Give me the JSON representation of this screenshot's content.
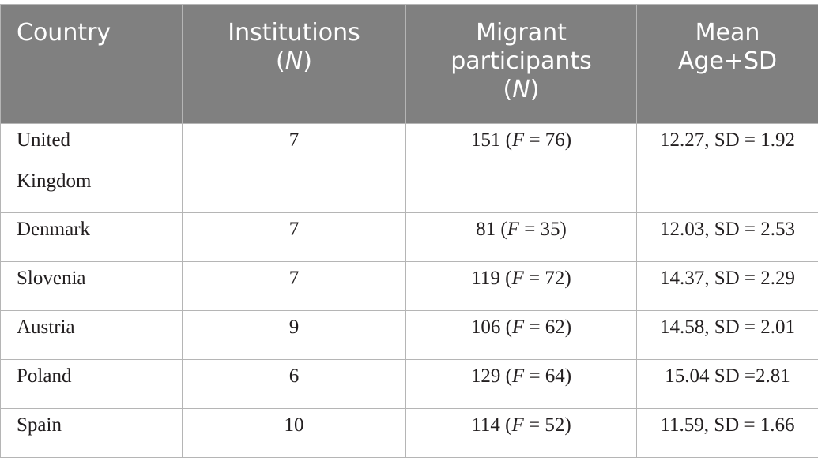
{
  "table": {
    "header": [
      [
        [
          "Country"
        ]
      ],
      [
        [
          "Institutions"
        ],
        [
          "(",
          {
            "text": "N",
            "italic": true
          },
          ")"
        ]
      ],
      [
        [
          "Migrant"
        ],
        [
          "participants"
        ],
        [
          "(",
          {
            "text": "N",
            "italic": true
          },
          ")"
        ]
      ],
      [
        [
          "Mean"
        ],
        [
          "Age+SD"
        ]
      ]
    ],
    "rows": [
      [
        [
          [
            "United"
          ],
          [
            "Kingdom"
          ]
        ],
        [
          [
            "7"
          ]
        ],
        [
          [
            "151 (",
            {
              "text": "F",
              "italic": true
            },
            " = 76)"
          ]
        ],
        [
          [
            "12.27, SD = 1.92"
          ]
        ]
      ],
      [
        [
          [
            "Denmark"
          ]
        ],
        [
          [
            "7"
          ]
        ],
        [
          [
            "81 (",
            {
              "text": "F",
              "italic": true
            },
            " = 35)"
          ]
        ],
        [
          [
            "12.03, SD = 2.53"
          ]
        ]
      ],
      [
        [
          [
            "Slovenia"
          ]
        ],
        [
          [
            "7"
          ]
        ],
        [
          [
            "119 (",
            {
              "text": "F",
              "italic": true
            },
            " = 72)"
          ]
        ],
        [
          [
            "14.37, SD = 2.29"
          ]
        ]
      ],
      [
        [
          [
            "Austria"
          ]
        ],
        [
          [
            "9"
          ]
        ],
        [
          [
            "106 (",
            {
              "text": "F",
              "italic": true
            },
            " = 62)"
          ]
        ],
        [
          [
            "14.58, SD = 2.01"
          ]
        ]
      ],
      [
        [
          [
            "Poland"
          ]
        ],
        [
          [
            "6"
          ]
        ],
        [
          [
            "129 (",
            {
              "text": "F",
              "italic": true
            },
            " = 64)"
          ]
        ],
        [
          [
            "15.04 SD =2.81"
          ]
        ]
      ],
      [
        [
          [
            "Spain"
          ]
        ],
        [
          [
            "10"
          ]
        ],
        [
          [
            "114 (",
            {
              "text": "F",
              "italic": true
            },
            " = 52)"
          ]
        ],
        [
          [
            "11.59, SD = 1.66"
          ]
        ]
      ]
    ]
  }
}
